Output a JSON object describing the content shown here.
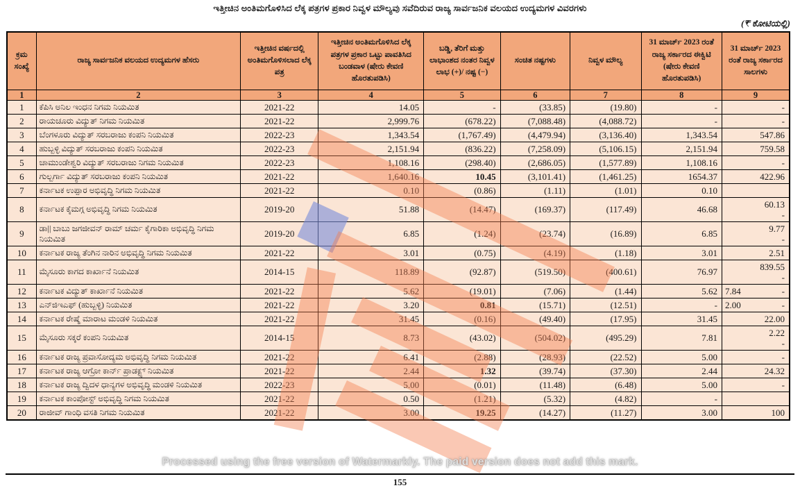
{
  "header": {
    "title": "ಇತ್ತೀಚಿನ ಅಂತಿಮಗೊಳಿಸಿದ ಲೆಕ್ಕ ಪತ್ರಗಳ ಪ್ರಕಾರ ನಿವ್ವಳ ಮೌಲ್ಯವು ಸವೆದಿರುವ ರಾಜ್ಯ ಸಾರ್ವಜನಿಕ ವಲಯದ ಉದ್ಯಮಗಳ ವಿವರಗಳು",
    "unit_note": "(₹ ಕೋಟಿಯಲ್ಲಿ)"
  },
  "colors": {
    "header_fill": "#F2A77B",
    "row_fill": "#FBE5D5",
    "border": "#000000",
    "watermark_orange": "#F27D4D",
    "watermark_blue": "#798CDA"
  },
  "table": {
    "columns": [
      {
        "no": "1",
        "label": "ಕ್ರಮ ಸಂಖ್ಯೆ"
      },
      {
        "no": "2",
        "label": "ರಾಜ್ಯ ಸಾರ್ವಜನಿಕ ವಲಯದ ಉದ್ಯಮಗಳ ಹೆಸರು"
      },
      {
        "no": "3",
        "label": "ಇತ್ತೀಚಿನ ವರ್ಷದಲ್ಲಿ ಅಂತಿಮಗೊಳಿಸಲಾದ ಲೆಕ್ಕ ಪತ್ರ"
      },
      {
        "no": "4",
        "label": "ಇತ್ತೀಚಿನ ಅಂತಿಮಗೊಳಿಸಿದ ಲೆಕ್ಕ ಪತ್ರಗಳ ಪ್ರಕಾರ ಒಟ್ಟು ಪಾವತಿಸಿದ ಬಂಡವಾಳ (ಷೇರು ಕೇವಣಿ ಹೊರತುಪಡಿಸಿ)"
      },
      {
        "no": "5",
        "label": "ಬಡ್ಡಿ, ತೆರಿಗೆ ಮತ್ತು ಲಾಭಾಂಶದ ನಂತರ ನಿವ್ವಳ ಲಾಭ (+)/ ನಷ್ಟ (−)"
      },
      {
        "no": "6",
        "label": "ಸಂಚಿತ ನಷ್ಟಗಳು"
      },
      {
        "no": "7",
        "label": "ನಿವ್ವಳ ಮೌಲ್ಯ"
      },
      {
        "no": "8",
        "label": "31 ಮಾರ್ಚ್ 2023 ರಂತೆ ರಾಜ್ಯ ಸರ್ಕಾರದ ಈಕ್ವಿಟಿ (ಷೇರು ಕೇವಣಿ ಹೊರತುಪಡಿಸಿ)"
      },
      {
        "no": "9",
        "label": "31 ಮಾರ್ಚ್ 2023 ರಂತೆ ರಾಜ್ಯ ಸರ್ಕಾರದ ಸಾಲಗಳು"
      }
    ],
    "rows": [
      {
        "sl": "1",
        "name": "ಕೆಪಿಸಿ ಅನಿಲ ಇಂಧನ ನಿಗಮ ನಿಯಮಿತ",
        "year": "2021-22",
        "paid_capital": "14.05",
        "net_profit_loss": "-",
        "bold_profit": false,
        "accumulated_losses": "(33.85)",
        "net_worth": "(19.80)",
        "govt_equity": "-",
        "govt_loans": [
          "-"
        ]
      },
      {
        "sl": "2",
        "name": "ರಾಯಚೂರು ವಿದ್ಯುತ್ ನಿಗಮ ನಿಯಮಿತ",
        "year": "2021-22",
        "paid_capital": "2,999.76",
        "net_profit_loss": "(678.22)",
        "bold_profit": false,
        "accumulated_losses": "(7,088.48)",
        "net_worth": "(4,088.72)",
        "govt_equity": "-",
        "govt_loans": [
          "-"
        ]
      },
      {
        "sl": "3",
        "name": "ಬೆಂಗಳೂರು ವಿದ್ಯುತ್ ಸರಬರಾಜು ಕಂಪನಿ ನಿಯಮಿತ",
        "year": "2022-23",
        "paid_capital": "1,343.54",
        "net_profit_loss": "(1,767.49)",
        "bold_profit": false,
        "accumulated_losses": "(4,479.94)",
        "net_worth": "(3,136.40)",
        "govt_equity": "1,343.54",
        "govt_loans": [
          "547.86"
        ]
      },
      {
        "sl": "4",
        "name": "ಹುಬ್ಬಳ್ಳಿ ವಿದ್ಯುತ್ ಸರಬರಾಜು ಕಂಪನಿ ನಿಯಮಿತ",
        "year": "2022-23",
        "paid_capital": "2,151.94",
        "net_profit_loss": "(836.22)",
        "bold_profit": false,
        "accumulated_losses": "(7,258.09)",
        "net_worth": "(5,106.15)",
        "govt_equity": "2,151.94",
        "govt_loans": [
          "759.58"
        ]
      },
      {
        "sl": "5",
        "name": "ಚಾಮುಂಡೇಶ್ವರಿ ವಿದ್ಯುತ್ ಸರಬರಾಜು ನಿಗಮ ನಿಯಮಿತ",
        "year": "2022-23",
        "paid_capital": "1,108.16",
        "net_profit_loss": "(298.40)",
        "bold_profit": false,
        "accumulated_losses": "(2,686.05)",
        "net_worth": "(1,577.89)",
        "govt_equity": "1,108.16",
        "govt_loans": [
          "-"
        ]
      },
      {
        "sl": "6",
        "name": "ಗುಲ್ಬರ್ಗಾ ವಿದ್ಯುತ್ ಸರಬರಾಜು ಕಂಪನಿ ನಿಯಮಿತ",
        "year": "2021-22",
        "paid_capital": "1,640.16",
        "net_profit_loss": "10.45",
        "bold_profit": true,
        "accumulated_losses": "(3,101.41)",
        "net_worth": "(1,461.25)",
        "govt_equity": "1654.37",
        "govt_loans": [
          "422.96"
        ]
      },
      {
        "sl": "7",
        "name": "ಕರ್ನಾಟಕ ಉಪ್ಪಾರ ಅಭಿವೃದ್ಧಿ ನಿಗಮ ನಿಯಮಿತ",
        "year": "2021-22",
        "paid_capital": "0.10",
        "net_profit_loss": "(0.86)",
        "bold_profit": false,
        "accumulated_losses": "(1.11)",
        "net_worth": "(1.01)",
        "govt_equity": "0.10",
        "govt_loans": [
          ""
        ]
      },
      {
        "sl": "8",
        "name": "ಕರ್ನಾಟಕ ಕೈಮಗ್ಗ ಅಭಿವೃದ್ಧಿ ನಿಗಮ ನಿಯಮಿತ",
        "year": "2019-20",
        "paid_capital": "51.88",
        "net_profit_loss": "(14.47)",
        "bold_profit": false,
        "accumulated_losses": "(169.37)",
        "net_worth": "(117.49)",
        "govt_equity": "46.68",
        "govt_loans": [
          "60.13",
          "-"
        ]
      },
      {
        "sl": "9",
        "name": "ಡಾ|| ಬಾಬು ಜಗಜೀವನ್ ರಾಮ್ ಚರ್ಮ ಕೈಗಾರಿಕಾ ಅಭಿವೃದ್ಧಿ ನಿಗಮ ನಿಯಮಿತ",
        "year": "2019-20",
        "paid_capital": "6.85",
        "net_profit_loss": "(1.24)",
        "bold_profit": false,
        "accumulated_losses": "(23.74)",
        "net_worth": "(16.89)",
        "govt_equity": "6.85",
        "govt_loans": [
          "9.77",
          "-"
        ]
      },
      {
        "sl": "10",
        "name": "ಕರ್ನಾಟಕ ರಾಜ್ಯ ತೆಂಗಿನ ನಾರಿನ ಅಭಿವೃದ್ಧಿ ನಿಗಮ ನಿಯಮಿತ",
        "year": "2021-22",
        "paid_capital": "3.01",
        "net_profit_loss": "(0.75)",
        "bold_profit": false,
        "accumulated_losses": "(4.19)",
        "net_worth": "(1.18)",
        "govt_equity": "3.01",
        "govt_loans": [
          "2.51"
        ]
      },
      {
        "sl": "11",
        "name": "ಮೈಸೂರು ಕಾಗದ ಕಾರ್ಖಾನೆ ನಿಯಮಿತ",
        "year": "2014-15",
        "paid_capital": "118.89",
        "net_profit_loss": "(92.87)",
        "bold_profit": false,
        "accumulated_losses": "(519.50)",
        "net_worth": "(400.61)",
        "govt_equity": "76.97",
        "govt_loans": [
          "839.55",
          "-"
        ]
      },
      {
        "sl": "12",
        "name": "ಕರ್ನಾಟಕ ವಿದ್ಯುತ್ ಕಾರ್ಖಾನೆ ನಿಯಮಿತ",
        "year": "2021-22",
        "paid_capital": "5.62",
        "net_profit_loss": "(19.01)",
        "bold_profit": false,
        "accumulated_losses": "(7.06)",
        "net_worth": "(1.44)",
        "govt_equity": "5.62",
        "govt_loans_split": [
          "7.84",
          "-"
        ]
      },
      {
        "sl": "13",
        "name": "ಎನ್‌ಜಿಇಎಫ್ (ಹುಬ್ಬಳ್ಳಿ) ನಿಯಮಿತ",
        "year": "2021-22",
        "paid_capital": "3.20",
        "net_profit_loss": "0.81",
        "bold_profit": true,
        "accumulated_losses": "(15.71)",
        "net_worth": "(12.51)",
        "govt_equity": "-",
        "govt_loans_split": [
          "2.00",
          "-"
        ]
      },
      {
        "sl": "14",
        "name": "ಕರ್ನಾಟಕ ರೇಷ್ಮೆ ಮಾರಾಟ ಮಂಡಳಿ ನಿಯಮಿತ",
        "year": "2021-22",
        "paid_capital": "31.45",
        "net_profit_loss": "(0.16)",
        "bold_profit": false,
        "accumulated_losses": "(49.40)",
        "net_worth": "(17.95)",
        "govt_equity": "31.45",
        "govt_loans": [
          "22.00"
        ]
      },
      {
        "sl": "15",
        "name": "ಮೈಸೂರು ಸಕ್ಕರೆ ಕಂಪನಿ ನಿಯಮಿತ",
        "year": "2014-15",
        "paid_capital": "8.73",
        "net_profit_loss": "(43.02)",
        "bold_profit": false,
        "accumulated_losses": "(504.02)",
        "net_worth": "(495.29)",
        "govt_equity": "7.81",
        "govt_loans": [
          "2.22",
          "-"
        ]
      },
      {
        "sl": "16",
        "name": "ಕರ್ನಾಟಕ ರಾಜ್ಯ ಪ್ರವಾಸೋದ್ಯಮ ಅಭಿವೃದ್ಧಿ ನಿಗಮ ನಿಯಮಿತ",
        "year": "2021-22",
        "paid_capital": "6.41",
        "net_profit_loss": "(2.88)",
        "bold_profit": false,
        "accumulated_losses": "(28.93)",
        "net_worth": "(22.52)",
        "govt_equity": "5.00",
        "govt_loans": [
          "-"
        ]
      },
      {
        "sl": "17",
        "name": "ಕರ್ನಾಟಕ ರಾಜ್ಯ ಆಗ್ರೋ ಕಾರ್ನ್ ಪ್ರಾಡಕ್ಟ್ಸ್ ನಿಯಮಿತ",
        "year": "2021-22",
        "paid_capital": "2.44",
        "net_profit_loss": "1.32",
        "bold_profit": true,
        "accumulated_losses": "(39.74)",
        "net_worth": "(37.30)",
        "govt_equity": "2.44",
        "govt_loans": [
          "24.32"
        ]
      },
      {
        "sl": "18",
        "name": "ಕರ್ನಾಟಕ ರಾಜ್ಯ ದ್ವಿದಳ ಧಾನ್ಯಗಳ ಅಭಿವೃದ್ಧಿ ಮಂಡಳಿ ನಿಯಮಿತ",
        "year": "2022-23",
        "paid_capital": "5.00",
        "net_profit_loss": "(0.01)",
        "bold_profit": false,
        "accumulated_losses": "(11.48)",
        "net_worth": "(6.48)",
        "govt_equity": "5.00",
        "govt_loans": [
          "-"
        ]
      },
      {
        "sl": "19",
        "name": "ಕರ್ನಾಟಕ ಕಾಂಪೋಸ್ಟ್ ಅಭಿವೃದ್ಧಿ ನಿಗಮ ನಿಯಮಿತ",
        "year": "2021-22",
        "paid_capital": "0.50",
        "net_profit_loss": "(1.21)",
        "bold_profit": false,
        "accumulated_losses": "(5.32)",
        "net_worth": "(4.82)",
        "govt_equity": "-",
        "govt_loans": [
          ""
        ]
      },
      {
        "sl": "20",
        "name": "ರಾಜೀವ್ ಗಾಂಧಿ ವಸತಿ ನಿಗಮ ನಿಯಮಿತ",
        "year": "2021-22",
        "paid_capital": "3.00",
        "net_profit_loss": "19.25",
        "bold_profit": true,
        "accumulated_losses": "(14.27)",
        "net_worth": "(11.27)",
        "govt_equity": "3.00",
        "govt_loans": [
          "100"
        ]
      }
    ]
  },
  "watermark": {
    "bottom_text": "Processed using the free version of Watermarkly. The paid version does not add this mark."
  },
  "footer": {
    "page_number": "155"
  }
}
